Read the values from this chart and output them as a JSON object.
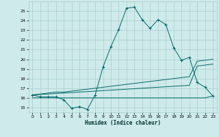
{
  "xlabel": "Humidex (Indice chaleur)",
  "background_color": "#ceeaea",
  "grid_color": "#aacccc",
  "line_color": "#006666",
  "x_data": [
    0,
    1,
    2,
    3,
    4,
    5,
    6,
    7,
    8,
    9,
    10,
    11,
    12,
    13,
    14,
    15,
    16,
    17,
    18,
    19,
    20,
    21,
    22,
    23
  ],
  "y_main": [
    16.3,
    16.1,
    16.1,
    16.1,
    15.8,
    14.9,
    15.1,
    14.8,
    16.3,
    19.2,
    21.3,
    23.1,
    25.3,
    25.4,
    24.1,
    23.2,
    24.1,
    23.6,
    21.2,
    19.9,
    20.2,
    17.6,
    17.1,
    16.2
  ],
  "y_line1": [
    16.3,
    16.4,
    16.5,
    16.6,
    16.6,
    16.7,
    16.8,
    16.9,
    17.0,
    17.1,
    17.2,
    17.3,
    17.4,
    17.5,
    17.6,
    17.7,
    17.8,
    17.9,
    18.0,
    18.1,
    18.2,
    19.8,
    19.9,
    20.0
  ],
  "y_line2": [
    16.3,
    16.35,
    16.4,
    16.45,
    16.5,
    16.55,
    16.6,
    16.65,
    16.7,
    16.75,
    16.8,
    16.85,
    16.9,
    16.95,
    17.0,
    17.05,
    17.1,
    17.15,
    17.2,
    17.25,
    17.3,
    19.3,
    19.4,
    19.5
  ],
  "y_flat": [
    16.0,
    16.0,
    16.0,
    16.0,
    16.0,
    16.0,
    16.0,
    16.0,
    16.0,
    16.0,
    16.0,
    16.0,
    16.0,
    16.0,
    16.0,
    16.0,
    16.0,
    16.0,
    16.0,
    16.0,
    16.0,
    16.0,
    16.0,
    16.2
  ],
  "ylim": [
    14.5,
    26.0
  ],
  "xlim": [
    -0.5,
    23.5
  ],
  "yticks": [
    15,
    16,
    17,
    18,
    19,
    20,
    21,
    22,
    23,
    24,
    25
  ],
  "xticks": [
    0,
    1,
    2,
    3,
    4,
    5,
    6,
    7,
    8,
    9,
    10,
    11,
    12,
    13,
    14,
    15,
    16,
    17,
    18,
    19,
    20,
    21,
    22,
    23
  ]
}
